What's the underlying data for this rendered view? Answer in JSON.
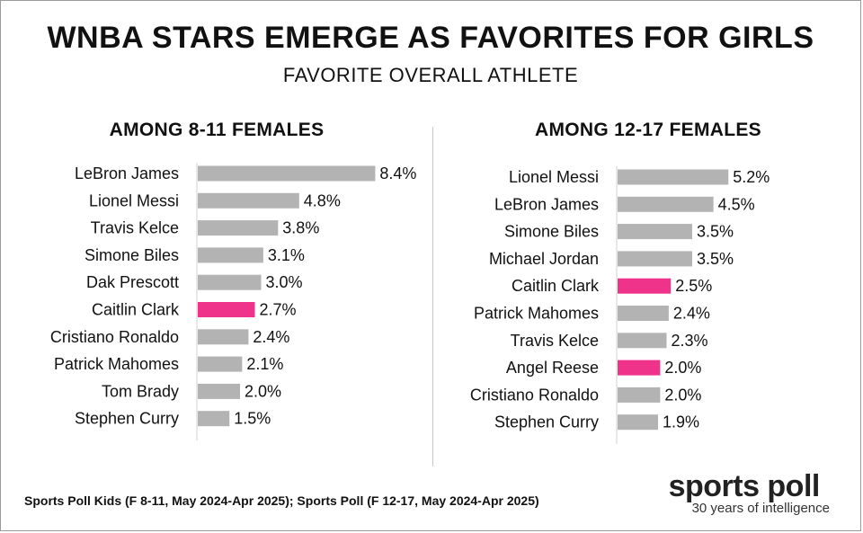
{
  "title": "WNBA STARS EMERGE AS FAVORITES FOR GIRLS",
  "subtitle": "FAVORITE OVERALL ATHLETE",
  "colors": {
    "default_bar": "#b3b3b3",
    "highlight_bar": "#f0338a"
  },
  "chart_data": [
    {
      "type": "bar",
      "orientation": "horizontal",
      "title": "AMONG 8-11 FEMALES",
      "categories": [
        "LeBron James",
        "Lionel Messi",
        "Travis Kelce",
        "Simone Biles",
        "Dak Prescott",
        "Caitlin Clark",
        "Cristiano Ronaldo",
        "Patrick Mahomes",
        "Tom Brady",
        "Stephen Curry"
      ],
      "values": [
        8.4,
        4.8,
        3.8,
        3.1,
        3.0,
        2.7,
        2.4,
        2.1,
        2.0,
        1.5
      ],
      "labels": [
        "8.4%",
        "4.8%",
        "3.8%",
        "3.1%",
        "3.0%",
        "2.7%",
        "2.4%",
        "2.1%",
        "2.0%",
        "1.5%"
      ],
      "highlight": [
        "Caitlin Clark"
      ],
      "grid": false
    },
    {
      "type": "bar",
      "orientation": "horizontal",
      "title": "AMONG 12-17 FEMALES",
      "categories": [
        "Lionel Messi",
        "LeBron James",
        "Simone Biles",
        "Michael Jordan",
        "Caitlin Clark",
        "Patrick Mahomes",
        "Travis Kelce",
        "Angel Reese",
        "Cristiano Ronaldo",
        "Stephen Curry"
      ],
      "values": [
        5.2,
        4.5,
        3.5,
        3.5,
        2.5,
        2.4,
        2.3,
        2.0,
        2.0,
        1.9
      ],
      "labels": [
        "5.2%",
        "4.5%",
        "3.5%",
        "3.5%",
        "2.5%",
        "2.4%",
        "2.3%",
        "2.0%",
        "2.0%",
        "1.9%"
      ],
      "highlight": [
        "Caitlin Clark",
        "Angel Reese"
      ],
      "grid": false
    }
  ],
  "source": "Sports Poll Kids (F 8-11, May 2024-Apr 2025); Sports Poll (F 12-17, May 2024-Apr 2025)",
  "brand": {
    "name": "sports poll",
    "tagline": "30 years of intelligence"
  }
}
